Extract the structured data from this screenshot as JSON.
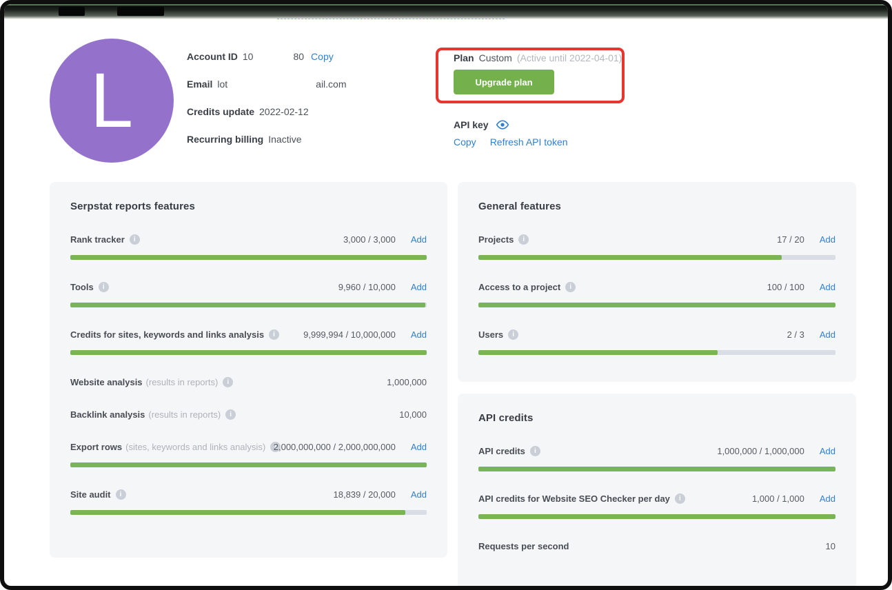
{
  "colors": {
    "accent_green": "#74b04c",
    "progress_green": "#79b556",
    "progress_track": "#d9dde6",
    "link_blue": "#2f80d0",
    "highlight_red": "#e5362f",
    "avatar_purple": "#9472cc",
    "card_background": "#f5f6f8"
  },
  "profile": {
    "avatar_letter": "L",
    "account_id": {
      "label": "Account ID",
      "parts": [
        "10",
        "80"
      ],
      "copy_link": "Copy"
    },
    "email": {
      "label": "Email",
      "parts": [
        "lot",
        "ail.com"
      ]
    },
    "credits_update": {
      "label": "Credits update",
      "value": "2022-02-12"
    },
    "recurring_billing": {
      "label": "Recurring billing",
      "value": "Inactive"
    }
  },
  "plan": {
    "label": "Plan",
    "name": "Custom",
    "status": "(Active until 2022-04-01)",
    "upgrade_button": "Upgrade plan"
  },
  "api_key": {
    "label": "API key",
    "copy_link": "Copy",
    "refresh_link": "Refresh API token"
  },
  "cards": {
    "add_label": "Add",
    "reports": {
      "title": "Serpstat reports features",
      "rows": [
        {
          "label": "Rank tracker",
          "info": true,
          "value": "3,000 / 3,000",
          "add": true,
          "progress": 100
        },
        {
          "label": "Tools",
          "info": true,
          "value": "9,960 / 10,000",
          "add": true,
          "progress": 99.6
        },
        {
          "label": "Credits for sites, keywords and links analysis",
          "info": true,
          "value": "9,999,994 / 10,000,000",
          "add": true,
          "progress": 100
        },
        {
          "label": "Website analysis",
          "note": "(results in reports)",
          "info": true,
          "value": "1,000,000",
          "add": false,
          "progress": null
        },
        {
          "label": "Backlink analysis",
          "note": "(results in reports)",
          "info": true,
          "value": "10,000",
          "add": false,
          "progress": null
        },
        {
          "label": "Export rows",
          "note": "(sites, keywords and links analysis)",
          "info": true,
          "value": "2,000,000,000 / 2,000,000,000",
          "add": true,
          "progress": 100
        },
        {
          "label": "Site audit",
          "info": true,
          "value": "18,839 / 20,000",
          "add": true,
          "progress": 94
        }
      ]
    },
    "general": {
      "title": "General features",
      "rows": [
        {
          "label": "Projects",
          "info": true,
          "value": "17 / 20",
          "add": true,
          "progress": 85
        },
        {
          "label": "Access to a project",
          "info": true,
          "value": "100 / 100",
          "add": true,
          "progress": 100
        },
        {
          "label": "Users",
          "info": true,
          "value": "2 / 3",
          "add": true,
          "progress": 67
        }
      ]
    },
    "api": {
      "title": "API credits",
      "rows": [
        {
          "label": "API credits",
          "info": true,
          "value": "1,000,000 / 1,000,000",
          "add": true,
          "progress": 100
        },
        {
          "label": "API credits for Website SEO Checker per day",
          "info": true,
          "value": "1,000 / 1,000",
          "add": true,
          "progress": 100
        },
        {
          "label": "Requests per second",
          "info": false,
          "value": "10",
          "add": false,
          "progress": null
        }
      ]
    }
  }
}
